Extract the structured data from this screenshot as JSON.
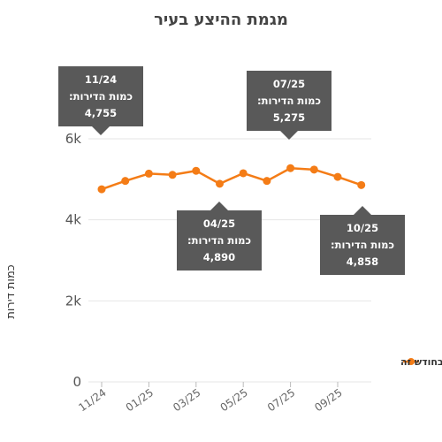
{
  "chart_data": {
    "type": "line",
    "title": "מגמת ההיצע בעיר",
    "ylabel": "כמות דירות",
    "xlabel": "",
    "x": [
      "11/24",
      "12/24",
      "01/25",
      "02/25",
      "03/25",
      "04/25",
      "05/25",
      "06/25",
      "07/25",
      "08/25",
      "09/25",
      "10/25"
    ],
    "x_tick_labels": [
      "11/24",
      "01/25",
      "03/25",
      "05/25",
      "07/25",
      "09/25"
    ],
    "y_tick_labels": [
      "0",
      "2k",
      "4k",
      "6k"
    ],
    "ylim": [
      0,
      6000
    ],
    "series": [
      {
        "name": "כמות הדירות המוצעות בחודש זה",
        "color": "#f47c16",
        "values": [
          4755,
          4960,
          5140,
          5110,
          5210,
          4890,
          5150,
          4960,
          5275,
          5240,
          5060,
          4858
        ]
      }
    ],
    "legend": "right",
    "grid": true,
    "annotations": [
      {
        "x": "11/24",
        "date": "11/24",
        "label": "כמות הדירות:",
        "value": "4,755",
        "placement": "above"
      },
      {
        "x": "07/25",
        "date": "07/25",
        "label": "כמות הדירות:",
        "value": "5,275",
        "placement": "above"
      },
      {
        "x": "04/25",
        "date": "04/25",
        "label": "כמות הדירות:",
        "value": "4,890",
        "placement": "below"
      },
      {
        "x": "10/25",
        "date": "10/25",
        "label": "כמות הדירות:",
        "value": "4,858",
        "placement": "below"
      }
    ]
  },
  "colors": {
    "line": "#f47c16",
    "callout_bg": "#595959",
    "grid": "#e6e6e6"
  }
}
